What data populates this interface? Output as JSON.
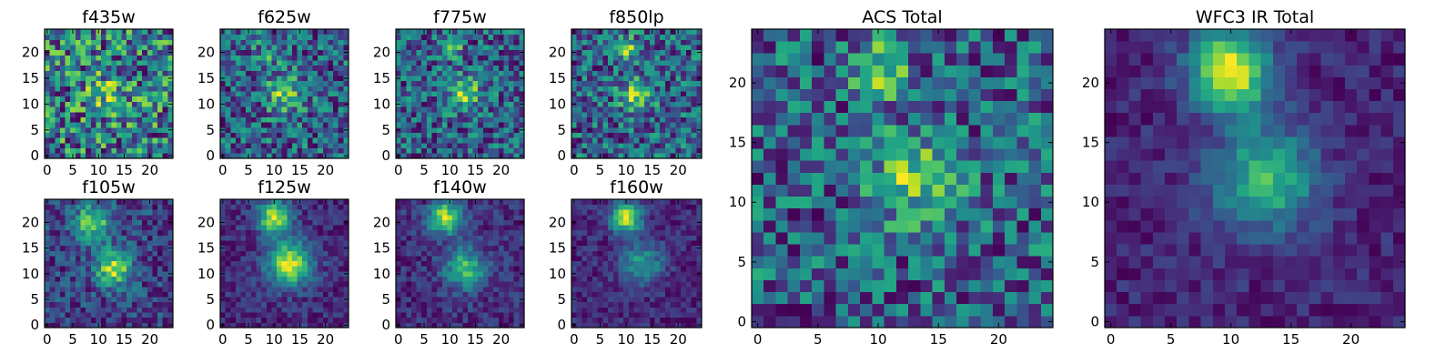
{
  "colormap": "viridis",
  "chart_data": [
    {
      "type": "heatmap",
      "title": "f435w",
      "xticks": [
        "0",
        "5",
        "10",
        "15",
        "20"
      ],
      "yticks": [
        "0",
        "5",
        "10",
        "15",
        "20"
      ],
      "xlim": [
        -0.5,
        24.5
      ],
      "ylim": [
        -0.5,
        24.5
      ],
      "grid_size": 25,
      "features": [
        {
          "x": 12,
          "y": 12,
          "sigma": 3.0,
          "amp": 0.2
        }
      ],
      "background": 0.65,
      "noise": 0.35,
      "seed": 11
    },
    {
      "type": "heatmap",
      "title": "f625w",
      "xticks": [
        "0",
        "5",
        "10",
        "15",
        "20"
      ],
      "yticks": [
        "0",
        "5",
        "10",
        "15",
        "20"
      ],
      "xlim": [
        -0.5,
        24.5
      ],
      "ylim": [
        -0.5,
        24.5
      ],
      "grid_size": 25,
      "features": [
        {
          "x": 12,
          "y": 12,
          "sigma": 2.5,
          "amp": 0.45
        },
        {
          "x": 9,
          "y": 20,
          "sigma": 2.0,
          "amp": 0.2
        }
      ],
      "background": 0.45,
      "noise": 0.32,
      "seed": 23
    },
    {
      "type": "heatmap",
      "title": "f775w",
      "xticks": [
        "0",
        "5",
        "10",
        "15",
        "20"
      ],
      "yticks": [
        "0",
        "5",
        "10",
        "15",
        "20"
      ],
      "xlim": [
        -0.5,
        24.5
      ],
      "ylim": [
        -0.5,
        24.5
      ],
      "grid_size": 25,
      "features": [
        {
          "x": 13,
          "y": 12,
          "sigma": 2.2,
          "amp": 0.45
        },
        {
          "x": 10,
          "y": 21,
          "sigma": 1.5,
          "amp": 0.5
        }
      ],
      "background": 0.42,
      "noise": 0.3,
      "seed": 37
    },
    {
      "type": "heatmap",
      "title": "f850lp",
      "xticks": [
        "0",
        "5",
        "10",
        "15",
        "20"
      ],
      "yticks": [
        "0",
        "5",
        "10",
        "15",
        "20"
      ],
      "xlim": [
        -0.5,
        24.5
      ],
      "ylim": [
        -0.5,
        24.5
      ],
      "grid_size": 25,
      "features": [
        {
          "x": 12,
          "y": 12,
          "sigma": 2.2,
          "amp": 0.45
        },
        {
          "x": 10,
          "y": 21,
          "sigma": 1.5,
          "amp": 0.5
        }
      ],
      "background": 0.45,
      "noise": 0.3,
      "seed": 41
    },
    {
      "type": "heatmap",
      "title": "f105w",
      "xticks": [
        "0",
        "5",
        "10",
        "15",
        "20"
      ],
      "yticks": [
        "0",
        "5",
        "10",
        "15",
        "20"
      ],
      "xlim": [
        -0.5,
        24.5
      ],
      "ylim": [
        -0.5,
        24.5
      ],
      "grid_size": 25,
      "features": [
        {
          "x": 9,
          "y": 20,
          "sigma": 2.5,
          "amp": 0.6
        },
        {
          "x": 13,
          "y": 11,
          "sigma": 2.5,
          "amp": 0.65
        }
      ],
      "background": 0.35,
      "noise": 0.2,
      "seed": 53
    },
    {
      "type": "heatmap",
      "title": "f125w",
      "xticks": [
        "0",
        "5",
        "10",
        "15",
        "20"
      ],
      "yticks": [
        "0",
        "5",
        "10",
        "15",
        "20"
      ],
      "xlim": [
        -0.5,
        24.5
      ],
      "ylim": [
        -0.5,
        24.5
      ],
      "grid_size": 25,
      "features": [
        {
          "x": 10,
          "y": 21,
          "sigma": 2.3,
          "amp": 0.7
        },
        {
          "x": 13,
          "y": 12,
          "sigma": 3.0,
          "amp": 0.75
        }
      ],
      "background": 0.3,
      "noise": 0.12,
      "seed": 67
    },
    {
      "type": "heatmap",
      "title": "f140w",
      "xticks": [
        "0",
        "5",
        "10",
        "15",
        "20"
      ],
      "yticks": [
        "0",
        "5",
        "10",
        "15",
        "20"
      ],
      "xlim": [
        -0.5,
        24.5
      ],
      "ylim": [
        -0.5,
        24.5
      ],
      "grid_size": 25,
      "features": [
        {
          "x": 9,
          "y": 21,
          "sigma": 2.2,
          "amp": 0.75
        },
        {
          "x": 13,
          "y": 11,
          "sigma": 2.8,
          "amp": 0.55
        }
      ],
      "background": 0.32,
      "noise": 0.14,
      "seed": 79
    },
    {
      "type": "heatmap",
      "title": "f160w",
      "xticks": [
        "0",
        "5",
        "10",
        "15",
        "20"
      ],
      "yticks": [
        "0",
        "5",
        "10",
        "15",
        "20"
      ],
      "xlim": [
        -0.5,
        24.5
      ],
      "ylim": [
        -0.5,
        24.5
      ],
      "grid_size": 25,
      "features": [
        {
          "x": 10,
          "y": 21,
          "sigma": 2.0,
          "amp": 0.85
        },
        {
          "x": 13,
          "y": 12,
          "sigma": 2.8,
          "amp": 0.45
        }
      ],
      "background": 0.15,
      "noise": 0.12,
      "seed": 83
    },
    {
      "type": "heatmap",
      "title": "ACS Total",
      "xticks": [
        "0",
        "5",
        "10",
        "15",
        "20"
      ],
      "yticks": [
        "0",
        "5",
        "10",
        "15",
        "20"
      ],
      "xlim": [
        -0.5,
        24.5
      ],
      "ylim": [
        -0.5,
        24.5
      ],
      "grid_size": 25,
      "features": [
        {
          "x": 10,
          "y": 21,
          "sigma": 1.6,
          "amp": 0.5
        },
        {
          "x": 13,
          "y": 12,
          "sigma": 2.4,
          "amp": 0.45
        }
      ],
      "background": 0.5,
      "noise": 0.3,
      "seed": 97
    },
    {
      "type": "heatmap",
      "title": "WFC3 IR Total",
      "xticks": [
        "0",
        "5",
        "10",
        "15",
        "20"
      ],
      "yticks": [
        "0",
        "5",
        "10",
        "15",
        "20"
      ],
      "xlim": [
        -0.5,
        24.5
      ],
      "ylim": [
        -0.5,
        24.5
      ],
      "grid_size": 25,
      "features": [
        {
          "x": 10,
          "y": 21,
          "sigma": 2.3,
          "amp": 0.85
        },
        {
          "x": 13,
          "y": 12,
          "sigma": 3.0,
          "amp": 0.55
        }
      ],
      "background": 0.18,
      "noise": 0.1,
      "seed": 101
    }
  ]
}
